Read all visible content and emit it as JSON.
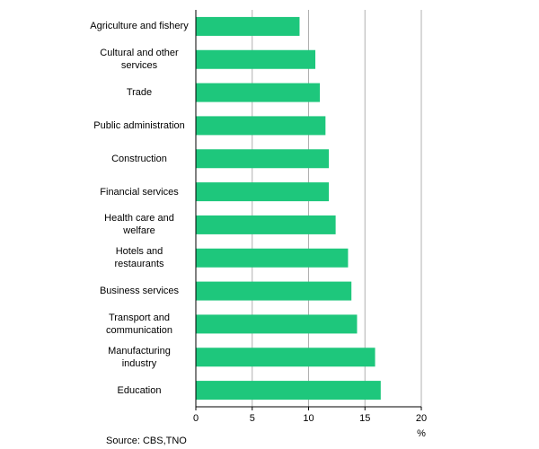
{
  "chart_data": {
    "type": "barh",
    "categories": [
      "Agriculture and fishery",
      "Cultural and other services",
      "Trade",
      "Public administration",
      "Construction",
      "Financial services",
      "Health care and welfare",
      "Hotels and restaurants",
      "Business services",
      "Transport and communication",
      "Manufacturing industry",
      "Education"
    ],
    "values": [
      9.2,
      10.6,
      11.0,
      11.5,
      11.8,
      11.8,
      12.4,
      13.5,
      13.8,
      14.3,
      15.9,
      16.4
    ],
    "color": "#1ec77c",
    "xlim": [
      0,
      20
    ],
    "xticks": [
      0,
      5,
      10,
      15,
      20
    ],
    "grid": true,
    "xlabel": "%",
    "source": "Source: CBS,TNO"
  }
}
